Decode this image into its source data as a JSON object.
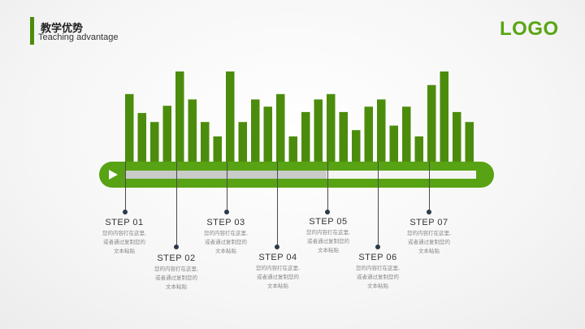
{
  "header": {
    "title": "教学优势",
    "subtitle": "Teaching advantage",
    "logo": "LOGO"
  },
  "colors": {
    "bar": "#4c8c0c",
    "track": "#57a313",
    "accent": "#5aa513",
    "progress_fill": "#c9cbc9"
  },
  "equalizer": {
    "levels": [
      0.75,
      0.54,
      0.44,
      0.62,
      1.0,
      0.69,
      0.44,
      0.28,
      1.0,
      0.44,
      0.69,
      0.61,
      0.75,
      0.28,
      0.55,
      0.69,
      0.75,
      0.55,
      0.35,
      0.61,
      0.69,
      0.4,
      0.61,
      0.28,
      0.85,
      1.0,
      0.55,
      0.44
    ]
  },
  "progress": {
    "fraction": 0.575
  },
  "steps": [
    {
      "title": "STEP 01",
      "desc": [
        "您的内容打在这里,",
        "或者通过复制您的",
        "文本粘贴"
      ]
    },
    {
      "title": "STEP 02",
      "desc": [
        "您的内容打在这里,",
        "或者通过复制您的",
        "文本粘贴"
      ]
    },
    {
      "title": "STEP 03",
      "desc": [
        "您的内容打在这里,",
        "或者通过复制您的",
        "文本粘贴"
      ]
    },
    {
      "title": "STEP 04",
      "desc": [
        "您的内容打在这里,",
        "或者通过复制您的",
        "文本粘贴"
      ]
    },
    {
      "title": "STEP 05",
      "desc": [
        "您的内容打在这里,",
        "或者通过复制您的",
        "文本粘贴"
      ]
    },
    {
      "title": "STEP 06",
      "desc": [
        "您的内容打在这里,",
        "或者通过复制您的",
        "文本粘贴"
      ]
    },
    {
      "title": "STEP 07",
      "desc": [
        "您的内容打在这里,",
        "或者通过复制您的",
        "文本粘贴"
      ]
    }
  ]
}
